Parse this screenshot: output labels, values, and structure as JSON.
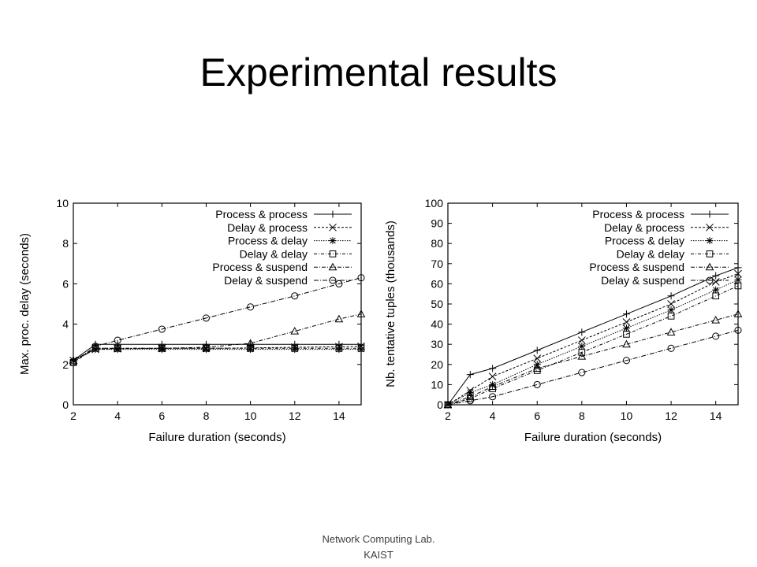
{
  "slide": {
    "title": "Experimental results"
  },
  "footer": {
    "line1": "Network Computing Lab.",
    "line2": "KAIST"
  },
  "chart_data": [
    {
      "type": "line",
      "xlabel": "Failure duration (seconds)",
      "ylabel": "Max. proc. delay (seconds)",
      "xlim": [
        2,
        15
      ],
      "ylim": [
        0,
        10
      ],
      "xticks": [
        2,
        4,
        6,
        8,
        10,
        12,
        14
      ],
      "yticks": [
        0,
        2,
        4,
        6,
        8,
        10
      ],
      "legend_position": "top-right",
      "grid": false,
      "x": [
        2,
        3,
        4,
        6,
        8,
        10,
        12,
        14,
        15
      ],
      "series": [
        {
          "name": "Process & process",
          "marker": "plus",
          "dash": "",
          "values": [
            2.2,
            3.0,
            3.0,
            3.0,
            3.0,
            3.0,
            3.0,
            3.0,
            3.0
          ]
        },
        {
          "name": "Delay & process",
          "marker": "x",
          "dash": "3,2",
          "values": [
            2.2,
            2.75,
            2.78,
            2.8,
            2.8,
            2.82,
            2.85,
            2.88,
            2.9
          ]
        },
        {
          "name": "Process & delay",
          "marker": "star",
          "dash": "1.5,1.5",
          "values": [
            2.2,
            2.75,
            2.75,
            2.75,
            2.75,
            2.75,
            2.75,
            2.75,
            2.75
          ]
        },
        {
          "name": "Delay & delay",
          "marker": "square",
          "dash": "4,2,1,2",
          "values": [
            2.1,
            2.8,
            2.8,
            2.8,
            2.8,
            2.8,
            2.8,
            2.8,
            2.8
          ]
        },
        {
          "name": "Process & suspend",
          "marker": "triangle",
          "dash": "5,2,1,2",
          "values": [
            2.2,
            2.8,
            2.8,
            2.8,
            2.85,
            3.05,
            3.65,
            4.25,
            4.5
          ]
        },
        {
          "name": "Delay & suspend",
          "marker": "circle",
          "dash": "6,2,1,2",
          "values": [
            2.1,
            2.9,
            3.2,
            3.75,
            4.3,
            4.85,
            5.4,
            6.0,
            6.3
          ]
        }
      ]
    },
    {
      "type": "line",
      "xlabel": "Failure duration (seconds)",
      "ylabel": "Nb. tentative tuples (thousands)",
      "xlim": [
        2,
        15
      ],
      "ylim": [
        0,
        100
      ],
      "xticks": [
        2,
        4,
        6,
        8,
        10,
        12,
        14
      ],
      "yticks": [
        0,
        10,
        20,
        30,
        40,
        50,
        60,
        70,
        80,
        90,
        100
      ],
      "legend_position": "top-right",
      "grid": false,
      "x": [
        2,
        3,
        4,
        6,
        8,
        10,
        12,
        14,
        15
      ],
      "series": [
        {
          "name": "Process & process",
          "marker": "plus",
          "dash": "",
          "values": [
            0,
            15,
            18,
            27,
            36,
            45,
            54,
            64,
            68
          ]
        },
        {
          "name": "Delay & process",
          "marker": "x",
          "dash": "3,2",
          "values": [
            0,
            7,
            14,
            23,
            32,
            41,
            50,
            61,
            65
          ]
        },
        {
          "name": "Process & delay",
          "marker": "star",
          "dash": "1.5,1.5",
          "values": [
            0,
            6,
            10,
            20,
            29,
            38,
            47,
            57,
            62
          ]
        },
        {
          "name": "Delay & delay",
          "marker": "square",
          "dash": "4,2,1,2",
          "values": [
            0,
            3,
            8,
            17,
            26,
            35,
            44,
            54,
            59
          ]
        },
        {
          "name": "Process & suspend",
          "marker": "triangle",
          "dash": "5,2,1,2",
          "values": [
            0,
            4,
            9,
            18,
            24,
            30,
            36,
            42,
            45
          ]
        },
        {
          "name": "Delay & suspend",
          "marker": "circle",
          "dash": "6,2,1,2",
          "values": [
            0,
            2,
            4,
            10,
            16,
            22,
            28,
            34,
            37
          ]
        }
      ]
    }
  ]
}
